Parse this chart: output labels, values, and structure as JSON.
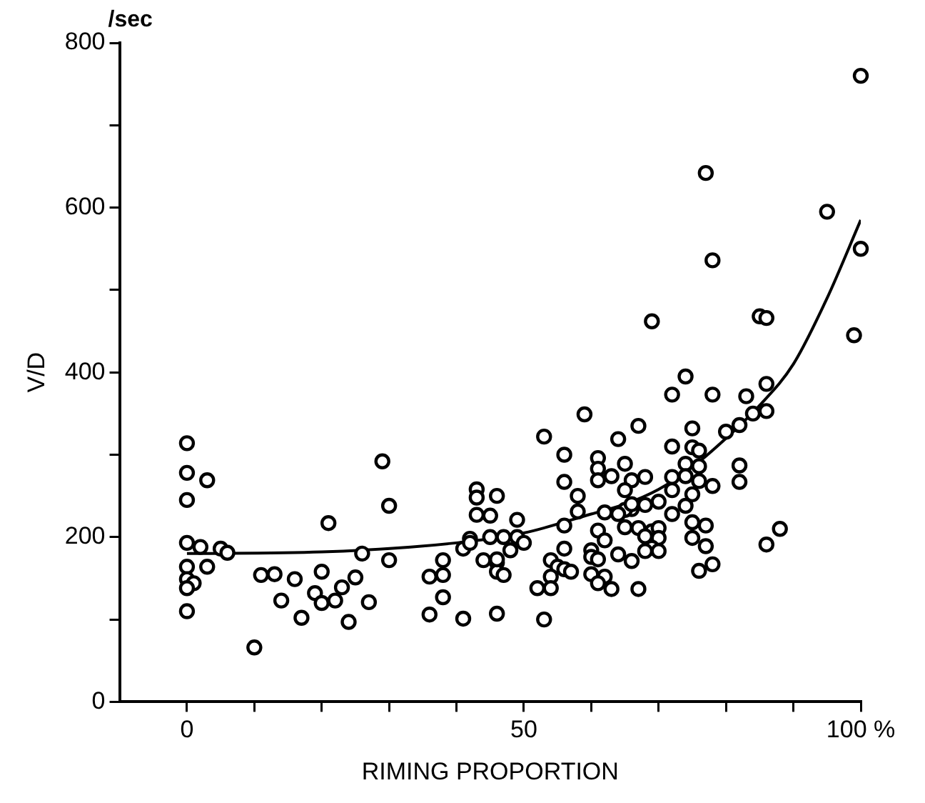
{
  "chart_data": {
    "type": "scatter",
    "xlabel": "RIMING PROPORTION",
    "ylabel": "V/D",
    "annotations": [
      "/sec"
    ],
    "xlim": [
      -10,
      100
    ],
    "xticks": [
      0,
      {
        "value": 10,
        "label": null
      },
      {
        "value": 20,
        "label": null
      },
      {
        "value": 30,
        "label": null
      },
      {
        "value": 40,
        "label": null
      },
      50,
      {
        "value": 60,
        "label": null
      },
      {
        "value": 70,
        "label": null
      },
      {
        "value": 80,
        "label": null
      },
      {
        "value": 90,
        "label": null
      },
      {
        "value": 100,
        "label": "100 %"
      }
    ],
    "ylim": [
      0,
      800
    ],
    "yticks": [
      0,
      {
        "value": 100,
        "label": null
      },
      200,
      {
        "value": 300,
        "label": null
      },
      400,
      {
        "value": 500,
        "label": null
      },
      600,
      {
        "value": 700,
        "label": null
      },
      800
    ],
    "grid": false,
    "legend": false,
    "series": [
      {
        "marker": "circle",
        "color": "#000000",
        "x": [
          0,
          0,
          3,
          0,
          0,
          2,
          5,
          6,
          0,
          3,
          0,
          1,
          0,
          0,
          10,
          11,
          13,
          16,
          14,
          17,
          20,
          19,
          20,
          22,
          23,
          25,
          24,
          27,
          21,
          26,
          29,
          30,
          30,
          36,
          38,
          38,
          38,
          36,
          41,
          46,
          41,
          42,
          42,
          43,
          43,
          46,
          43,
          45,
          45,
          47,
          49,
          48,
          49,
          44,
          46,
          46,
          47,
          72,
          78,
          83,
          59,
          67,
          53,
          64,
          75,
          80,
          82,
          84,
          56,
          61,
          72,
          75,
          76,
          65,
          61,
          74,
          76,
          82,
          63,
          61,
          68,
          66,
          56,
          72,
          74,
          76,
          78,
          82,
          58,
          65,
          72,
          75,
          58,
          62,
          66,
          68,
          70,
          74,
          56,
          72,
          75,
          77,
          65,
          67,
          69,
          70,
          61,
          50,
          62,
          75,
          77,
          68,
          70,
          69,
          56,
          68,
          70,
          60,
          64,
          66,
          54,
          60,
          61,
          78,
          76,
          55,
          56,
          57,
          46,
          54,
          60,
          62,
          61,
          52,
          54,
          63,
          67,
          53,
          65,
          64,
          66,
          77,
          95,
          78,
          100,
          69,
          85,
          86,
          99,
          74,
          86,
          86,
          100,
          86,
          88
        ],
        "values": [
          314,
          278,
          269,
          245,
          193,
          188,
          186,
          181,
          164,
          164,
          149,
          144,
          138,
          110,
          66,
          154,
          155,
          149,
          123,
          102,
          158,
          132,
          120,
          123,
          139,
          151,
          97,
          121,
          217,
          180,
          292,
          238,
          172,
          152,
          172,
          154,
          127,
          106,
          101,
          107,
          186,
          198,
          193,
          258,
          248,
          250,
          227,
          226,
          200,
          200,
          200,
          184,
          221,
          172,
          169,
          158,
          154,
          373,
          373,
          371,
          349,
          335,
          322,
          319,
          332,
          328,
          336,
          350,
          300,
          296,
          310,
          309,
          305,
          289,
          283,
          289,
          286,
          287,
          274,
          269,
          273,
          269,
          267,
          273,
          274,
          268,
          262,
          267,
          250,
          257,
          257,
          252,
          231,
          230,
          234,
          239,
          243,
          238,
          214,
          228,
          218,
          214,
          212,
          211,
          207,
          211,
          208,
          193,
          196,
          199,
          189,
          201,
          199,
          187,
          186,
          183,
          183,
          184,
          179,
          171,
          172,
          176,
          173,
          167,
          159,
          164,
          161,
          158,
          173,
          152,
          155,
          152,
          144,
          138,
          138,
          137,
          137,
          100,
          233,
          228,
          240,
          642,
          595,
          536,
          550,
          462,
          468,
          466,
          445,
          395,
          386,
          353,
          760,
          191,
          210
        ]
      },
      {
        "type": "line",
        "marker": "none",
        "line_style": "solid",
        "color": "#000000",
        "x": [
          0,
          20,
          40,
          50,
          60,
          65,
          70,
          75,
          80,
          85,
          90,
          95,
          100
        ],
        "values": [
          180,
          182,
          193,
          205,
          228,
          240,
          258,
          285,
          320,
          360,
          410,
          490,
          585
        ]
      }
    ]
  }
}
